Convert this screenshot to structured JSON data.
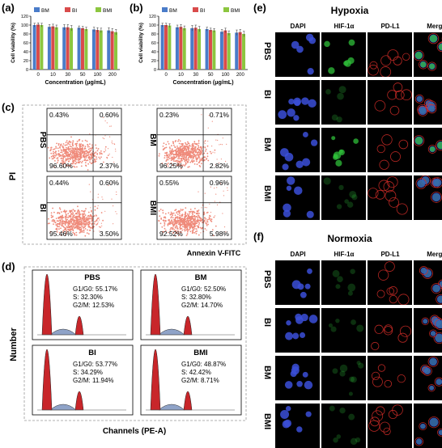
{
  "panels": {
    "a": "(a)",
    "b": "(b)",
    "c": "(c)",
    "d": "(d)",
    "e": "(e)",
    "f": "(f)"
  },
  "chart_data": [
    {
      "panel": "a",
      "type": "bar",
      "categories": [
        "0",
        "10",
        "30",
        "50",
        "100",
        "200"
      ],
      "xlabel": "Concentration (μg/mL)",
      "ylabel": "Cell viability (%)",
      "ylim": [
        0,
        120
      ],
      "yticks": [
        "0",
        "20",
        "40",
        "60",
        "80",
        "100",
        "120"
      ],
      "legend_placement": "top",
      "series": [
        {
          "name": "BM",
          "color": "#4a7cc9",
          "values": [
            100,
            96,
            95,
            94,
            90,
            88
          ]
        },
        {
          "name": "BI",
          "color": "#d94b4b",
          "values": [
            101,
            97,
            95,
            93,
            89,
            86
          ]
        },
        {
          "name": "BMI",
          "color": "#8cc63f",
          "values": [
            100,
            95,
            93,
            91,
            88,
            84
          ]
        }
      ]
    },
    {
      "panel": "b",
      "type": "bar",
      "categories": [
        "0",
        "10",
        "30",
        "50",
        "100",
        "200"
      ],
      "xlabel": "Concentration (μg/mL)",
      "ylabel": "Cell viability (%)",
      "ylim": [
        0,
        120
      ],
      "yticks": [
        "0",
        "20",
        "40",
        "60",
        "80",
        "100",
        "120"
      ],
      "legend_placement": "top",
      "series": [
        {
          "name": "BM",
          "color": "#4a7cc9",
          "values": [
            100,
            95,
            93,
            91,
            85,
            83
          ]
        },
        {
          "name": "BI",
          "color": "#d94b4b",
          "values": [
            100,
            96,
            94,
            89,
            88,
            84
          ]
        },
        {
          "name": "BMI",
          "color": "#8cc63f",
          "values": [
            99,
            93,
            91,
            88,
            82,
            80
          ]
        }
      ]
    },
    {
      "panel": "c",
      "type": "scatter",
      "xlabel": "Annexin V-FITC",
      "ylabel": "PI",
      "plots": [
        {
          "label": "PBS",
          "ul": "0.43%",
          "ur": "0.60%",
          "ll": "96.60%",
          "lr": "2.37%"
        },
        {
          "label": "BM",
          "ul": "0.23%",
          "ur": "0.71%",
          "ll": "96.25%",
          "lr": "2.82%"
        },
        {
          "label": "BI",
          "ul": "0.44%",
          "ur": "0.60%",
          "ll": "95.46%",
          "lr": "3.50%"
        },
        {
          "label": "BMI",
          "ul": "0.55%",
          "ur": "0.96%",
          "ll": "92.52%",
          "lr": "5.98%"
        }
      ]
    },
    {
      "panel": "d",
      "type": "area",
      "xlabel": "Channels (PE-A)",
      "ylabel": "Number",
      "plots": [
        {
          "label": "PBS",
          "g1": "G1/G0: 55.17%",
          "s": "S: 32.30%",
          "g2": "G2/M: 12.53%"
        },
        {
          "label": "BM",
          "g1": "G1/G0: 52.50%",
          "s": "S: 32.80%",
          "g2": "G2/M: 14.70%"
        },
        {
          "label": "BI",
          "g1": "G1/G0: 53.77%",
          "s": "S: 34.29%",
          "g2": "G2/M: 11.94%"
        },
        {
          "label": "BMI",
          "g1": "G1/G0: 48.87%",
          "s": "S: 42.42%",
          "g2": "G2/M: 8.71%"
        }
      ]
    }
  ],
  "microscopy": {
    "hypoxia_title": "Hypoxia",
    "normoxia_title": "Normoxia",
    "columns": [
      "DAPI",
      "HIF-1α",
      "PD-L1",
      "Merge"
    ],
    "rows": [
      "PBS",
      "BI",
      "BM",
      "BMI"
    ],
    "colors": {
      "dapi": "#3b4fd8",
      "hif": "#2fbf3a",
      "pdl1": "#e0302a"
    }
  }
}
